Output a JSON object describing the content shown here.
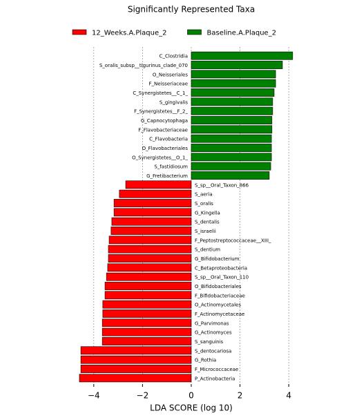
{
  "chart_data": {
    "type": "bar",
    "orientation": "horizontal",
    "title": "Significantly Represented Taxa",
    "x_label": "LDA SCORE (log 10)",
    "categories": [
      "C_Clostridia",
      "S_oralis_subsp__tigurinus_clade_070",
      "O_Neisseriales",
      "F_Neisseriaceae",
      "C_Synergistetes__C_1_",
      "S_gingivalis",
      "F_Synergistetes__F_2_",
      "G_Capnocytophaga",
      "F_Flavobacteriaceae",
      "C_Flavobacteria",
      "O_Flavobacteriales",
      "O_Synergistetes__O_1_",
      "S_fastidiosum",
      "G_Fretibacterium",
      "S_sp__Oral_Taxon_866",
      "S_aeria",
      "S_oralis",
      "G_Kingella",
      "S_dentalis",
      "S_israelii",
      "F_Peptostreptococcaceae__XIII_",
      "S_dentium",
      "G_Bifidobacterium",
      "C_Betaproteobacteria",
      "S_sp__Oral_Taxon_110",
      "O_Bifidobacteriales",
      "F_Bifidobacteriaceae",
      "O_Actinomycetales",
      "F_Actinomycetaceae",
      "G_Parvimonas",
      "G_Actinomyces",
      "S_sanguinis",
      "S_dentocariosa",
      "G_Rothia",
      "F_Micrococcaceae",
      "P_Actinobacteria"
    ],
    "series": [
      {
        "name": "12_Weeks.A.Plaque_2",
        "color": "#ff0000",
        "values": [
          null,
          null,
          null,
          null,
          null,
          null,
          null,
          null,
          null,
          null,
          null,
          null,
          null,
          null,
          -2.69,
          -2.95,
          -3.17,
          -3.17,
          -3.26,
          -3.29,
          -3.37,
          -3.4,
          -3.4,
          -3.43,
          -3.48,
          -3.54,
          -3.54,
          -3.63,
          -3.63,
          -3.65,
          -3.65,
          -3.65,
          -4.53,
          -4.53,
          -4.53,
          -4.59
        ]
      },
      {
        "name": "Baseline.A.Plaque_2",
        "color": "#008000",
        "values": [
          4.16,
          3.74,
          3.46,
          3.46,
          3.4,
          3.34,
          3.34,
          3.31,
          3.31,
          3.29,
          3.29,
          3.29,
          3.26,
          3.2,
          null,
          null,
          null,
          null,
          null,
          null,
          null,
          null,
          null,
          null,
          null,
          null,
          null,
          null,
          null,
          null,
          null,
          null,
          null,
          null,
          null,
          null
        ]
      }
    ],
    "xlim": [
      -4.8,
      4.8
    ],
    "xticks": [
      {
        "value": -4,
        "label": "−4"
      },
      {
        "value": -2,
        "label": "−2"
      },
      0,
      2,
      4
    ],
    "grid": true,
    "legend": "top"
  }
}
